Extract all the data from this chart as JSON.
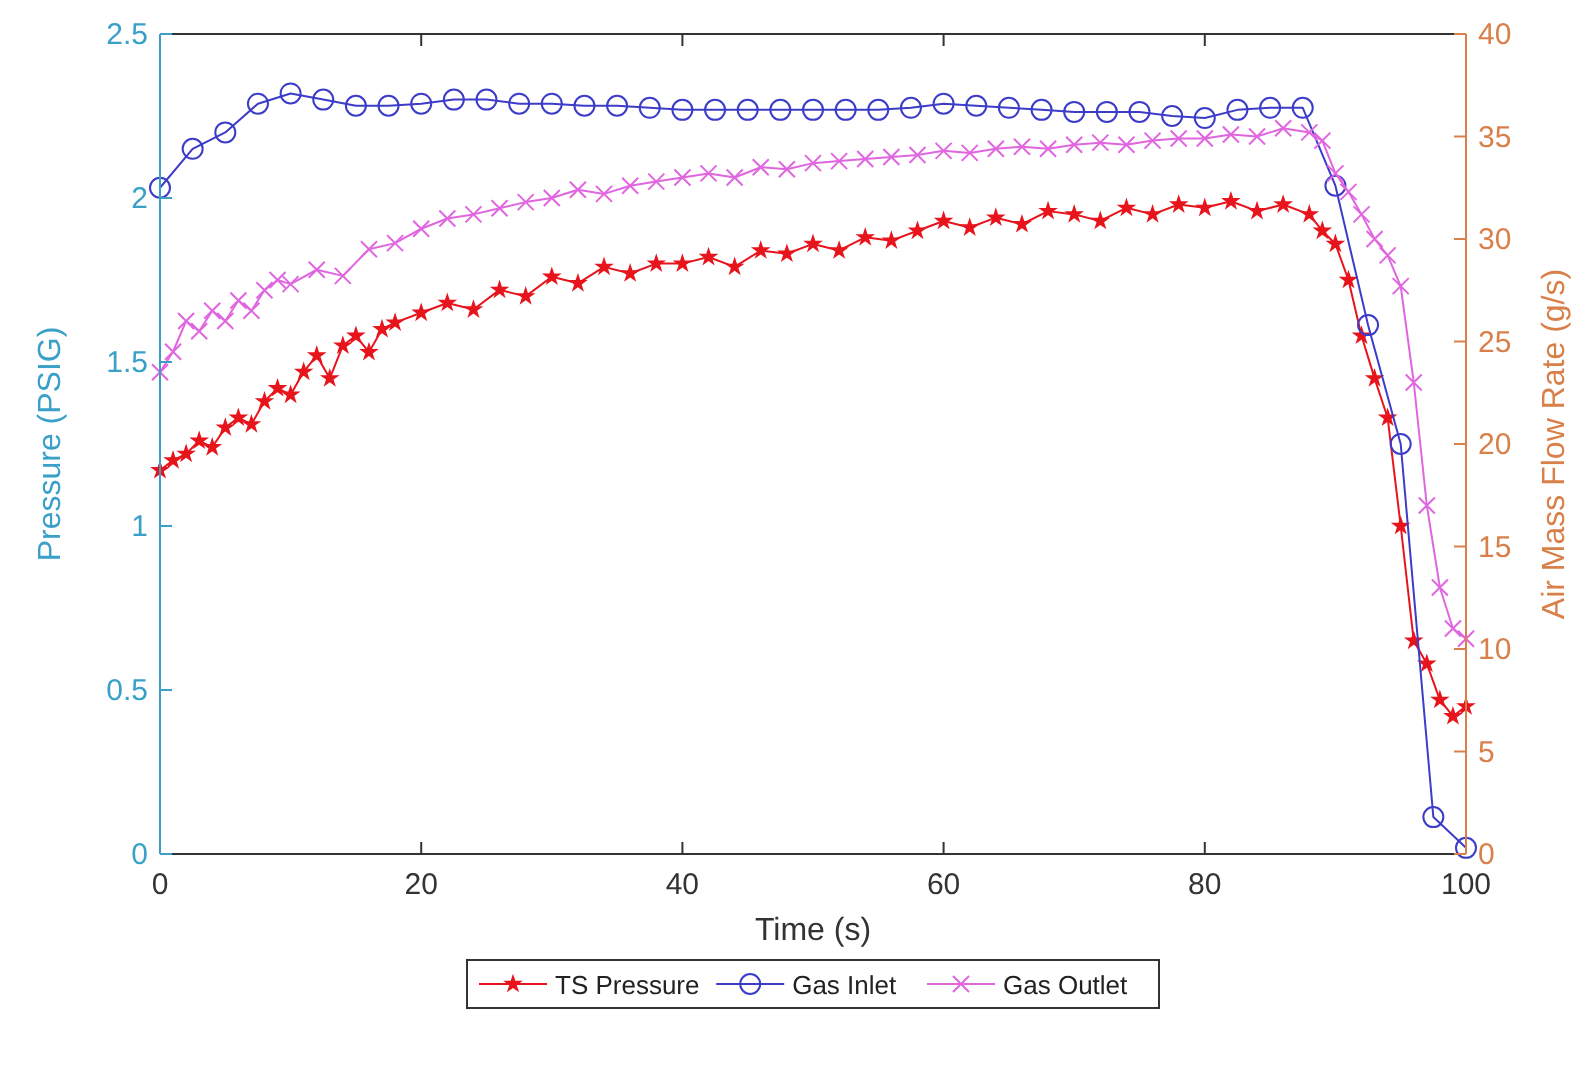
{
  "chart_data": {
    "type": "line",
    "xlabel": "Time (s)",
    "ylabel": "Pressure (PSIG)",
    "y2label": "Air Mass Flow Rate (g/s)",
    "xlim": [
      0,
      100
    ],
    "xticks": [
      0,
      20,
      40,
      60,
      80,
      100
    ],
    "ylim": [
      0,
      2.5
    ],
    "yticks": [
      0,
      0.5,
      1,
      1.5,
      2,
      2.5
    ],
    "y2lim": [
      0,
      40
    ],
    "y2ticks": [
      0,
      5,
      10,
      15,
      20,
      25,
      30,
      35,
      40
    ],
    "grid": false,
    "legend": "bottom",
    "series": [
      {
        "name": "TS Pressure",
        "color": "#e8141c",
        "marker": "star",
        "axis": "y",
        "x": [
          0,
          1,
          2,
          3,
          4,
          5,
          6,
          7,
          8,
          9,
          10,
          11,
          12,
          13,
          14,
          15,
          16,
          17,
          18,
          20,
          22,
          24,
          26,
          28,
          30,
          32,
          34,
          36,
          38,
          40,
          42,
          44,
          46,
          48,
          50,
          52,
          54,
          56,
          58,
          60,
          62,
          64,
          66,
          68,
          70,
          72,
          74,
          76,
          78,
          80,
          82,
          84,
          86,
          88,
          89,
          90,
          91,
          92,
          93,
          94,
          95,
          96,
          97,
          98,
          99,
          100
        ],
        "values": [
          1.17,
          1.2,
          1.22,
          1.26,
          1.24,
          1.3,
          1.33,
          1.31,
          1.38,
          1.42,
          1.4,
          1.47,
          1.52,
          1.45,
          1.55,
          1.58,
          1.53,
          1.6,
          1.62,
          1.65,
          1.68,
          1.66,
          1.72,
          1.7,
          1.76,
          1.74,
          1.79,
          1.77,
          1.8,
          1.8,
          1.82,
          1.79,
          1.84,
          1.83,
          1.86,
          1.84,
          1.88,
          1.87,
          1.9,
          1.93,
          1.91,
          1.94,
          1.92,
          1.96,
          1.95,
          1.93,
          1.97,
          1.95,
          1.98,
          1.97,
          1.99,
          1.96,
          1.98,
          1.95,
          1.9,
          1.86,
          1.75,
          1.58,
          1.45,
          1.33,
          1.0,
          0.65,
          0.58,
          0.47,
          0.42,
          0.45
        ]
      },
      {
        "name": "Gas Inlet",
        "color": "#3c3cc8",
        "marker": "circle",
        "axis": "y2",
        "x": [
          0,
          2.5,
          5,
          7.5,
          10,
          12.5,
          15,
          17.5,
          20,
          22.5,
          25,
          27.5,
          30,
          32.5,
          35,
          37.5,
          40,
          42.5,
          45,
          47.5,
          50,
          52.5,
          55,
          57.5,
          60,
          62.5,
          65,
          67.5,
          70,
          72.5,
          75,
          77.5,
          80,
          82.5,
          85,
          87.5,
          90,
          92.5,
          95,
          97.5,
          100
        ],
        "values": [
          32.5,
          34.4,
          35.2,
          36.6,
          37.1,
          36.8,
          36.5,
          36.5,
          36.6,
          36.8,
          36.8,
          36.6,
          36.6,
          36.5,
          36.5,
          36.4,
          36.3,
          36.3,
          36.3,
          36.3,
          36.3,
          36.3,
          36.3,
          36.4,
          36.6,
          36.5,
          36.4,
          36.3,
          36.2,
          36.2,
          36.2,
          36.0,
          35.9,
          36.3,
          36.4,
          36.4,
          32.6,
          25.8,
          20.0,
          1.8,
          0.3
        ]
      },
      {
        "name": "Gas Outlet",
        "color": "#e066e0",
        "marker": "cross",
        "axis": "y2",
        "x": [
          0,
          1,
          2,
          3,
          4,
          5,
          6,
          7,
          8,
          9,
          10,
          12,
          14,
          16,
          18,
          20,
          22,
          24,
          26,
          28,
          30,
          32,
          34,
          36,
          38,
          40,
          42,
          44,
          46,
          48,
          50,
          52,
          54,
          56,
          58,
          60,
          62,
          64,
          66,
          68,
          70,
          72,
          74,
          76,
          78,
          80,
          82,
          84,
          86,
          88,
          89,
          90,
          91,
          92,
          93,
          94,
          95,
          96,
          97,
          98,
          99,
          100
        ],
        "values": [
          23.5,
          24.5,
          26,
          25.5,
          26.5,
          26,
          27,
          26.5,
          27.5,
          28,
          27.8,
          28.5,
          28.2,
          29.5,
          29.8,
          30.5,
          31,
          31.2,
          31.5,
          31.8,
          32,
          32.4,
          32.2,
          32.6,
          32.8,
          33,
          33.2,
          33,
          33.5,
          33.4,
          33.7,
          33.8,
          33.9,
          34,
          34.1,
          34.3,
          34.2,
          34.4,
          34.5,
          34.4,
          34.6,
          34.7,
          34.6,
          34.8,
          34.9,
          34.9,
          35.1,
          35,
          35.4,
          35.2,
          34.8,
          33.2,
          32.3,
          31.2,
          30,
          29.2,
          27.7,
          23,
          17,
          13,
          11,
          10.5
        ]
      }
    ]
  }
}
